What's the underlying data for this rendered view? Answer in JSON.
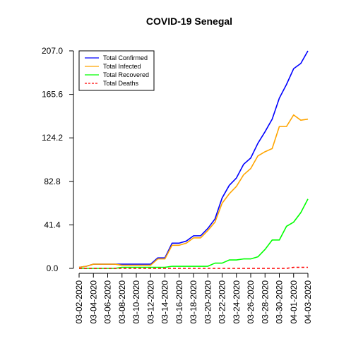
{
  "chart_data": {
    "type": "line",
    "title": "COVID-19 Senegal",
    "xlabel": "",
    "ylabel": "",
    "ylim": [
      0,
      207
    ],
    "yticks": [
      "0.0",
      "41.4",
      "82.8",
      "124.2",
      "165.6",
      "207.0"
    ],
    "x_start": "2020-03-02",
    "x_end": "2020-04-03",
    "x_tick_labels": [
      "03-02-2020",
      "03-04-2020",
      "03-06-2020",
      "03-08-2020",
      "03-10-2020",
      "03-12-2020",
      "03-14-2020",
      "03-16-2020",
      "03-18-2020",
      "03-20-2020",
      "03-22-2020",
      "03-24-2020",
      "03-26-2020",
      "03-28-2020",
      "03-30-2020",
      "04-01-2020",
      "04-03-2020"
    ],
    "dates": [
      "2020-03-02",
      "2020-03-03",
      "2020-03-04",
      "2020-03-05",
      "2020-03-06",
      "2020-03-07",
      "2020-03-08",
      "2020-03-09",
      "2020-03-10",
      "2020-03-11",
      "2020-03-12",
      "2020-03-13",
      "2020-03-14",
      "2020-03-15",
      "2020-03-16",
      "2020-03-17",
      "2020-03-18",
      "2020-03-19",
      "2020-03-20",
      "2020-03-21",
      "2020-03-22",
      "2020-03-23",
      "2020-03-24",
      "2020-03-25",
      "2020-03-26",
      "2020-03-27",
      "2020-03-28",
      "2020-03-29",
      "2020-03-30",
      "2020-03-31",
      "2020-04-01",
      "2020-04-02",
      "2020-04-03"
    ],
    "grid": false,
    "legend_position": "top-left",
    "series": [
      {
        "name": "Total Confirmed",
        "color": "#0000ff",
        "dash": "solid",
        "values": [
          1,
          2,
          4,
          4,
          4,
          4,
          4,
          4,
          4,
          4,
          4,
          10,
          10,
          24,
          24,
          26,
          31,
          31,
          38,
          47,
          67,
          79,
          86,
          99,
          105,
          119,
          130,
          142,
          162,
          175,
          190,
          195,
          207
        ]
      },
      {
        "name": "Total Infected",
        "color": "#ffa500",
        "dash": "solid",
        "values": [
          1,
          2,
          4,
          4,
          4,
          4,
          3,
          3,
          3,
          3,
          3,
          9,
          9,
          22,
          22,
          24,
          29,
          29,
          36,
          44,
          62,
          71,
          78,
          89,
          95,
          107,
          111,
          114,
          135,
          135,
          146,
          141,
          142
        ]
      },
      {
        "name": "Total Recovered",
        "color": "#00ff00",
        "dash": "solid",
        "values": [
          0,
          0,
          0,
          0,
          0,
          0,
          1,
          1,
          1,
          1,
          1,
          1,
          1,
          2,
          2,
          2,
          2,
          2,
          2,
          5,
          5,
          8,
          8,
          9,
          9,
          11,
          18,
          27,
          27,
          40,
          44,
          53,
          66
        ]
      },
      {
        "name": "Total Deaths",
        "color": "#ff0000",
        "dash": "dashed",
        "values": [
          0,
          0,
          0,
          0,
          0,
          0,
          0,
          0,
          0,
          0,
          0,
          0,
          0,
          0,
          0,
          0,
          0,
          0,
          0,
          0,
          0,
          0,
          0,
          0,
          0,
          0,
          0,
          0,
          0,
          0,
          1,
          1,
          1
        ]
      }
    ]
  }
}
